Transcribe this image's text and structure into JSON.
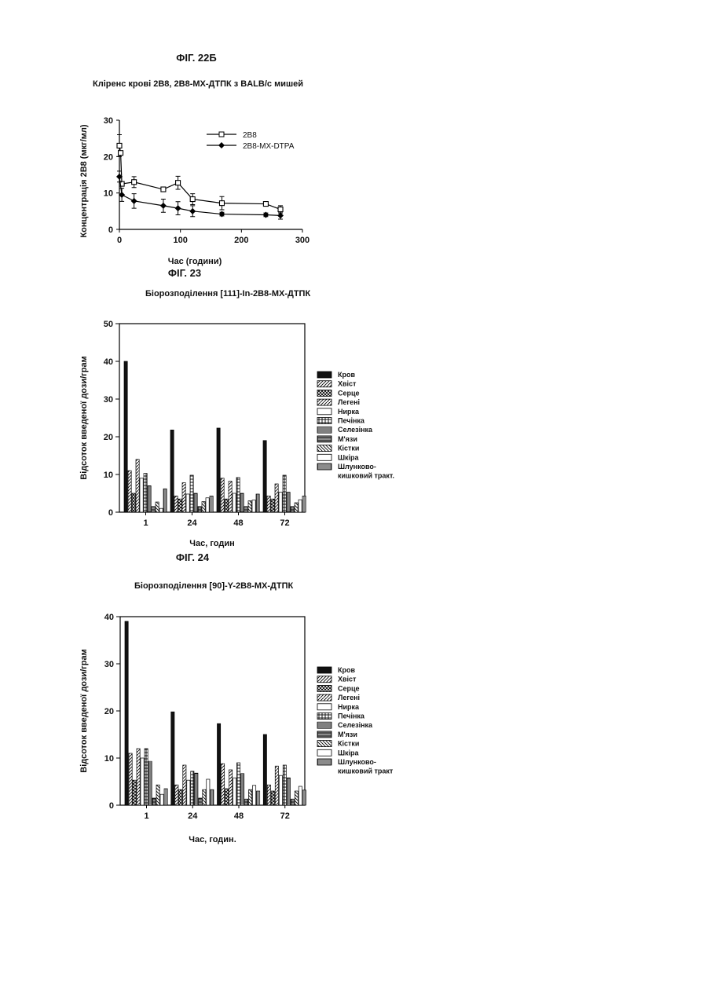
{
  "page": {
    "fig22_label": "ФІГ. 22Б",
    "fig22_title": "Кліренс крові 2В8, 2В8-МХ-ДТПК з BALB/c мишей",
    "fig23_label": "ФІГ. 23",
    "fig23_title": "Біорозподілення [111]-In-2B8-MX-ДТПК",
    "fig24_label": "ФІГ. 24",
    "fig24_title": "Біорозподілення [90]-Y-2B8-MX-ДТПК"
  },
  "chart_data": [
    {
      "type": "line",
      "title": "Кліренс крові 2В8, 2В8-МХ-ДТПК з BALB/c мишей",
      "xlabel": "Час (години)",
      "ylabel": "Концентрація 2B8  (мкг/мл)",
      "xlim": [
        0,
        300
      ],
      "ylim": [
        0,
        30
      ],
      "xticks": [
        0,
        100,
        200,
        300
      ],
      "yticks": [
        0,
        10,
        20,
        30
      ],
      "legend_position": "top-right",
      "series": [
        {
          "name": "2B8",
          "marker": "open-square",
          "x": [
            0,
            2,
            4,
            24,
            72,
            96,
            120,
            168,
            240,
            264
          ],
          "y": [
            23,
            21,
            12.5,
            13,
            11,
            12.8,
            8.3,
            7.2,
            7,
            5.5
          ],
          "err": [
            3,
            0,
            0,
            1.5,
            0,
            1.8,
            1.5,
            1.8,
            0,
            1
          ]
        },
        {
          "name": "2B8-MX-DTPA",
          "marker": "filled-diamond",
          "x": [
            0,
            4,
            24,
            72,
            96,
            120,
            168,
            240,
            264
          ],
          "y": [
            14.5,
            9.5,
            7.8,
            6.5,
            5.8,
            5,
            4.2,
            4,
            3.8
          ],
          "err": [
            1.5,
            1.8,
            2,
            1.8,
            1.8,
            1.5,
            0.5,
            0.5,
            1
          ]
        }
      ]
    },
    {
      "type": "bar",
      "title": "Біорозподілення [111]-In-2B8-MX-ДТПК",
      "xlabel": "Час, годин",
      "ylabel": "Відсоток введеної дози/грам",
      "ylim": [
        0,
        50
      ],
      "yticks": [
        0,
        10,
        20,
        30,
        40,
        50
      ],
      "categories": [
        "1",
        "24",
        "48",
        "72"
      ],
      "legend_position": "right",
      "series": [
        {
          "name": "Кров",
          "values": [
            40,
            21.8,
            22.3,
            19
          ]
        },
        {
          "name": "Хвіст",
          "values": [
            11,
            4.3,
            9,
            4.3
          ]
        },
        {
          "name": "Серце",
          "values": [
            5,
            3.5,
            3.5,
            3.5
          ]
        },
        {
          "name": "Легені",
          "values": [
            14,
            7.8,
            8.2,
            7.5
          ]
        },
        {
          "name": "Нирка",
          "values": [
            9,
            4.8,
            5,
            5.3
          ]
        },
        {
          "name": "Печінка",
          "values": [
            10.3,
            9.8,
            9.2,
            9.8
          ]
        },
        {
          "name": "Селезінка",
          "values": [
            7,
            5,
            5,
            5.3
          ]
        },
        {
          "name": "М'язи",
          "values": [
            1.5,
            1.5,
            1.5,
            1.5
          ]
        },
        {
          "name": "Кістки",
          "values": [
            2.7,
            2.8,
            3,
            2.5
          ]
        },
        {
          "name": "Шкіра",
          "values": [
            1,
            3.8,
            3.2,
            3.3
          ]
        },
        {
          "name": "Шлунково-кишковий тракт.",
          "values": [
            6.2,
            4.3,
            4.8,
            4.3
          ]
        }
      ]
    },
    {
      "type": "bar",
      "title": "Біорозподілення [90]-Y-2B8-MX-ДТПК",
      "xlabel": "Час, годин.",
      "ylabel": "Відсоток введеної дози/грам",
      "ylim": [
        0,
        40
      ],
      "yticks": [
        0,
        10,
        20,
        30,
        40
      ],
      "categories": [
        "1",
        "24",
        "48",
        "72"
      ],
      "legend_position": "right",
      "series": [
        {
          "name": "Кров",
          "values": [
            39,
            19.8,
            17.3,
            15
          ]
        },
        {
          "name": "Хвіст",
          "values": [
            11,
            4.3,
            8.8,
            4.3
          ]
        },
        {
          "name": "Серце",
          "values": [
            5.3,
            3.3,
            3.5,
            3
          ]
        },
        {
          "name": "Легені",
          "values": [
            12,
            8.5,
            7.5,
            8.3
          ]
        },
        {
          "name": "Нирка",
          "values": [
            10,
            5.3,
            5.8,
            6.3
          ]
        },
        {
          "name": "Печінка",
          "values": [
            12,
            7.2,
            9,
            8.5
          ]
        },
        {
          "name": "Селезінка",
          "values": [
            9.3,
            6.8,
            6.7,
            5.8
          ]
        },
        {
          "name": "М'язи",
          "values": [
            1.5,
            1.5,
            1.3,
            1.3
          ]
        },
        {
          "name": "Кістки",
          "values": [
            4.3,
            3.3,
            3.3,
            3
          ]
        },
        {
          "name": "Шкіра",
          "values": [
            2.3,
            5.5,
            4.2,
            4
          ]
        },
        {
          "name": "Шлунково-кишковий тракт",
          "values": [
            3.5,
            3.3,
            3,
            3.2
          ]
        }
      ]
    }
  ]
}
